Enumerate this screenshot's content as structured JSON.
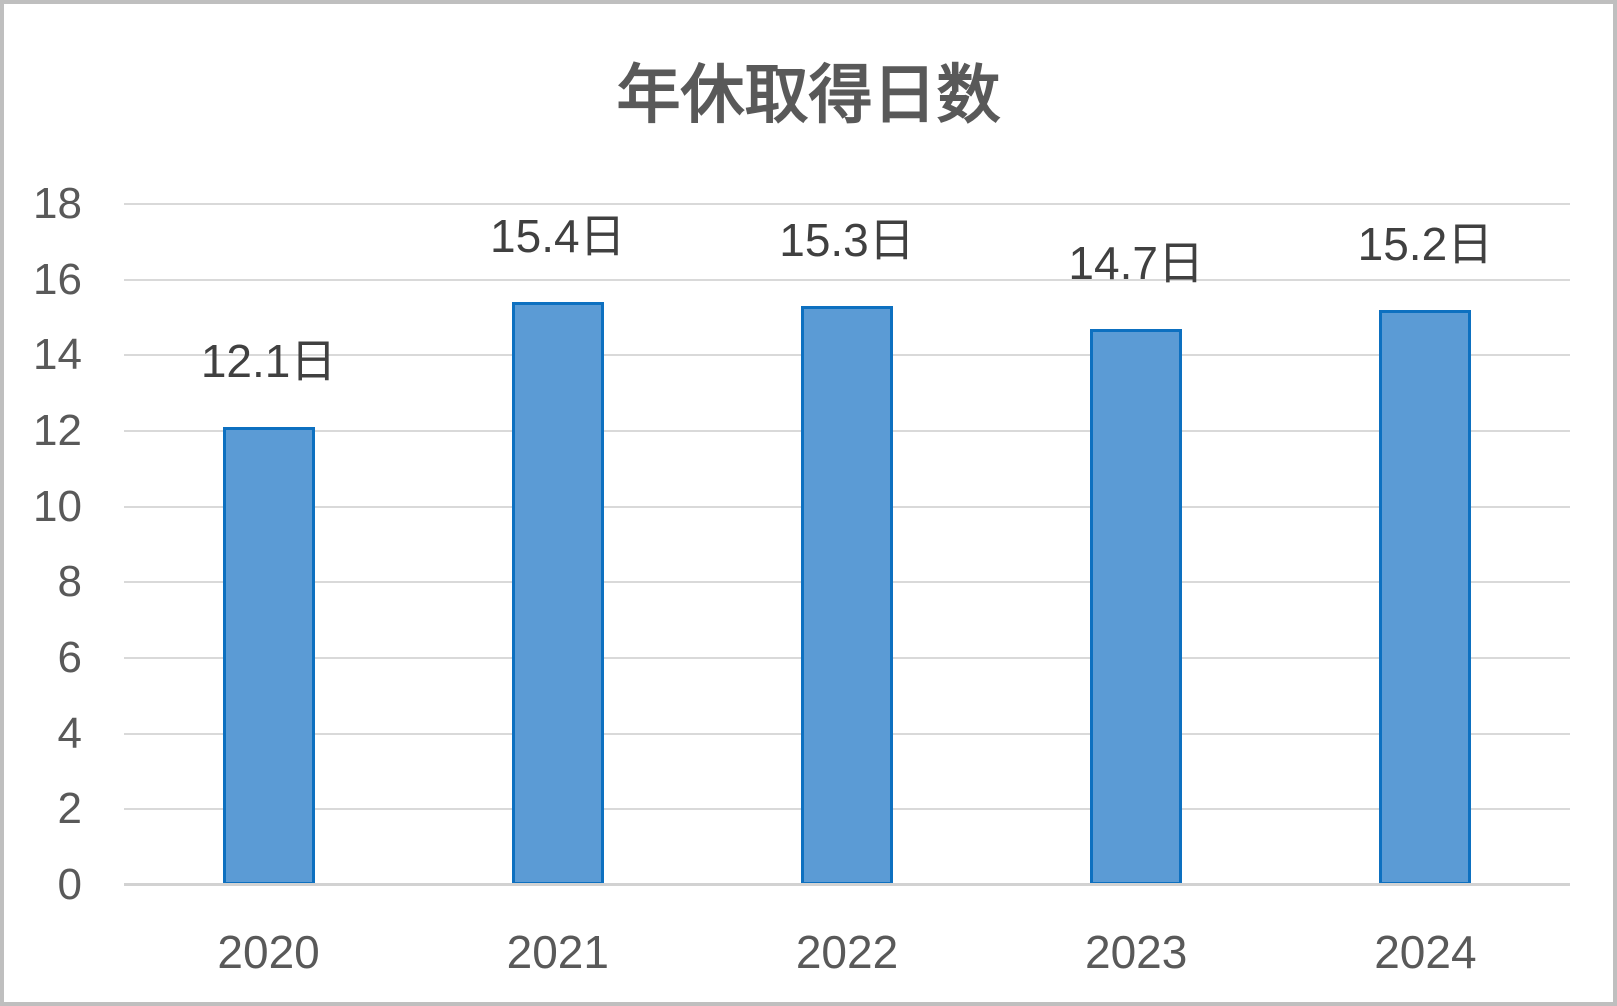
{
  "chart_data": {
    "type": "bar",
    "title": "年休取得日数",
    "categories": [
      "2020",
      "2021",
      "2022",
      "2023",
      "2024"
    ],
    "values": [
      12.1,
      15.4,
      15.3,
      14.7,
      15.2
    ],
    "data_labels": [
      "12.1日",
      "15.4日",
      "15.3日",
      "14.7日",
      "15.2日"
    ],
    "unit_suffix": "日",
    "xlabel": "",
    "ylabel": "",
    "ylim": [
      0,
      18
    ],
    "yticks": [
      0,
      2,
      4,
      6,
      8,
      10,
      12,
      14,
      16,
      18
    ],
    "grid": "horizontal",
    "legend": "none",
    "colors": {
      "bar_fill": "#5B9BD5",
      "bar_border": "#0D70C0",
      "gridline": "#D9D9D9",
      "axis_line": "#D2D2D2",
      "title_text": "#595959",
      "axis_text": "#595959",
      "data_label_text": "#404040",
      "frame_border": "#BFBFBF",
      "background": "#FFFFFF"
    }
  }
}
